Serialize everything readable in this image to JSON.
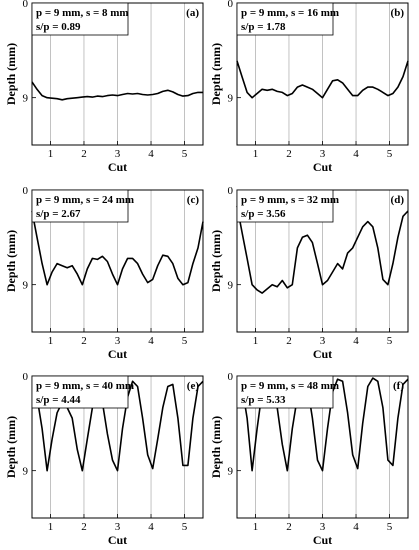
{
  "figure": {
    "chart_data": [
      {
        "type": "line",
        "panel_label": "(a)",
        "param_line1": "p = 9 mm, s = 8 mm",
        "param_line2": "s/p = 0.89",
        "xlabel": "Cut",
        "ylabel": "Depth (mm)",
        "xlim": [
          0.45,
          5.55
        ],
        "ylim": [
          0,
          13.5
        ],
        "y_inverted": true,
        "x_ticks": [
          1,
          2,
          3,
          4,
          5
        ],
        "y_ticks": [
          0,
          9
        ],
        "grid": "vertical",
        "series": [
          {
            "x": [
              0.45,
              0.6,
              0.75,
              0.9,
              1.05,
              1.2,
              1.35,
              1.5,
              1.65,
              1.8,
              1.95,
              2.1,
              2.25,
              2.4,
              2.55,
              2.7,
              2.85,
              3.0,
              3.15,
              3.3,
              3.45,
              3.6,
              3.75,
              3.9,
              4.05,
              4.2,
              4.35,
              4.5,
              4.65,
              4.8,
              4.95,
              5.1,
              5.25,
              5.4,
              5.55
            ],
            "values": [
              7.5,
              8.2,
              8.8,
              9.0,
              9.05,
              9.1,
              9.2,
              9.1,
              9.05,
              9.0,
              8.95,
              8.9,
              8.95,
              8.85,
              8.9,
              8.8,
              8.75,
              8.8,
              8.7,
              8.6,
              8.65,
              8.6,
              8.7,
              8.75,
              8.7,
              8.6,
              8.4,
              8.3,
              8.45,
              8.7,
              8.85,
              8.8,
              8.6,
              8.5,
              8.5
            ]
          }
        ]
      },
      {
        "type": "line",
        "panel_label": "(b)",
        "param_line1": "p = 9 mm, s = 16 mm",
        "param_line2": "s/p = 1.78",
        "xlabel": "Cut",
        "ylabel": "Depth (mm)",
        "xlim": [
          0.45,
          5.55
        ],
        "ylim": [
          0,
          13.5
        ],
        "y_inverted": true,
        "x_ticks": [
          1,
          2,
          3,
          4,
          5
        ],
        "y_ticks": [
          0,
          9
        ],
        "grid": "vertical",
        "series": [
          {
            "x": [
              0.45,
              0.6,
              0.75,
              0.9,
              1.05,
              1.2,
              1.35,
              1.5,
              1.65,
              1.8,
              1.95,
              2.1,
              2.25,
              2.4,
              2.55,
              2.7,
              2.85,
              3.0,
              3.15,
              3.3,
              3.45,
              3.6,
              3.75,
              3.9,
              4.05,
              4.2,
              4.35,
              4.5,
              4.65,
              4.8,
              4.95,
              5.1,
              5.25,
              5.4,
              5.55
            ],
            "values": [
              5.5,
              7.0,
              8.5,
              9.0,
              8.6,
              8.2,
              8.3,
              8.2,
              8.4,
              8.5,
              8.8,
              8.6,
              8.0,
              7.8,
              8.0,
              8.2,
              8.6,
              9.0,
              8.2,
              7.4,
              7.3,
              7.6,
              8.2,
              8.8,
              8.8,
              8.3,
              8.0,
              8.0,
              8.2,
              8.5,
              8.8,
              8.6,
              8.0,
              7.0,
              5.5
            ]
          }
        ]
      },
      {
        "type": "line",
        "panel_label": "(c)",
        "param_line1": "p = 9 mm, s = 24 mm",
        "param_line2": "s/p = 2.67",
        "xlabel": "Cut",
        "ylabel": "Depth (mm)",
        "xlim": [
          0.45,
          5.55
        ],
        "ylim": [
          0,
          13.5
        ],
        "y_inverted": true,
        "x_ticks": [
          1,
          2,
          3,
          4,
          5
        ],
        "y_ticks": [
          0,
          9
        ],
        "grid": "vertical",
        "series": [
          {
            "x": [
              0.45,
              0.6,
              0.75,
              0.9,
              1.05,
              1.2,
              1.35,
              1.5,
              1.65,
              1.8,
              1.95,
              2.1,
              2.25,
              2.4,
              2.55,
              2.7,
              2.85,
              3.0,
              3.15,
              3.3,
              3.45,
              3.6,
              3.75,
              3.9,
              4.05,
              4.2,
              4.35,
              4.5,
              4.65,
              4.8,
              4.95,
              5.1,
              5.25,
              5.4,
              5.55
            ],
            "values": [
              2.0,
              4.5,
              7.0,
              9.0,
              7.8,
              7.0,
              7.2,
              7.4,
              7.2,
              8.0,
              9.0,
              7.5,
              6.5,
              6.6,
              6.3,
              6.8,
              8.0,
              9.0,
              7.5,
              6.5,
              6.5,
              7.0,
              8.0,
              8.8,
              8.5,
              7.2,
              6.2,
              6.3,
              7.0,
              8.4,
              9.0,
              8.8,
              7.0,
              5.5,
              3.0
            ]
          }
        ]
      },
      {
        "type": "line",
        "panel_label": "(d)",
        "param_line1": "p = 9 mm, s = 32 mm",
        "param_line2": "s/p = 3.56",
        "xlabel": "Cut",
        "ylabel": "Depth (mm)",
        "xlim": [
          0.45,
          5.55
        ],
        "ylim": [
          0,
          13.5
        ],
        "y_inverted": true,
        "x_ticks": [
          1,
          2,
          3,
          4,
          5
        ],
        "y_ticks": [
          0,
          9
        ],
        "grid": "vertical",
        "series": [
          {
            "x": [
              0.45,
              0.6,
              0.75,
              0.9,
              1.05,
              1.2,
              1.35,
              1.5,
              1.65,
              1.8,
              1.95,
              2.1,
              2.25,
              2.4,
              2.55,
              2.7,
              2.85,
              3.0,
              3.15,
              3.3,
              3.45,
              3.6,
              3.75,
              3.9,
              4.05,
              4.2,
              4.35,
              4.5,
              4.65,
              4.8,
              4.95,
              5.1,
              5.25,
              5.4,
              5.55
            ],
            "values": [
              1.5,
              4.0,
              6.5,
              9.0,
              9.5,
              9.8,
              9.4,
              9.0,
              9.2,
              8.6,
              9.3,
              9.0,
              5.5,
              4.5,
              4.3,
              5.0,
              7.0,
              9.0,
              8.6,
              7.8,
              7.0,
              7.5,
              6.0,
              5.5,
              4.5,
              3.5,
              3.0,
              3.5,
              5.5,
              8.5,
              9.0,
              7.0,
              4.5,
              2.5,
              2.0
            ]
          }
        ]
      },
      {
        "type": "line",
        "panel_label": "(e)",
        "param_line1": "p = 9 mm, s = 40 mm",
        "param_line2": "s/p = 4.44",
        "xlabel": "Cut",
        "ylabel": "Depth (mm)",
        "xlim": [
          0.45,
          5.55
        ],
        "ylim": [
          0,
          13.5
        ],
        "y_inverted": true,
        "x_ticks": [
          1,
          2,
          3,
          4,
          5
        ],
        "y_ticks": [
          0,
          9
        ],
        "grid": "vertical",
        "series": [
          {
            "x": [
              0.45,
              0.6,
              0.75,
              0.9,
              1.05,
              1.2,
              1.35,
              1.5,
              1.65,
              1.8,
              1.95,
              2.1,
              2.25,
              2.4,
              2.55,
              2.7,
              2.85,
              3.0,
              3.15,
              3.3,
              3.45,
              3.6,
              3.75,
              3.9,
              4.05,
              4.2,
              4.35,
              4.5,
              4.65,
              4.8,
              4.95,
              5.1,
              5.25,
              5.4,
              5.55
            ],
            "values": [
              1.5,
              2.0,
              5.0,
              9.0,
              6.0,
              3.5,
              2.5,
              3.0,
              4.0,
              7.0,
              9.0,
              6.0,
              3.0,
              1.8,
              2.5,
              5.5,
              8.0,
              9.0,
              5.0,
              2.0,
              0.5,
              1.0,
              4.0,
              7.5,
              8.8,
              6.0,
              3.0,
              1.0,
              0.8,
              4.0,
              8.5,
              8.5,
              4.0,
              1.0,
              0.5
            ]
          }
        ]
      },
      {
        "type": "line",
        "panel_label": "(f)",
        "param_line1": "p = 9 mm, s = 48 mm",
        "param_line2": "s/p = 5.33",
        "xlabel": "Cut",
        "ylabel": "Depth (mm)",
        "xlim": [
          0.45,
          5.55
        ],
        "ylim": [
          0,
          13.5
        ],
        "y_inverted": true,
        "x_ticks": [
          1,
          2,
          3,
          4,
          5
        ],
        "y_ticks": [
          0,
          9
        ],
        "grid": "vertical",
        "series": [
          {
            "x": [
              0.45,
              0.6,
              0.75,
              0.9,
              1.05,
              1.2,
              1.35,
              1.5,
              1.65,
              1.8,
              1.95,
              2.1,
              2.25,
              2.4,
              2.55,
              2.7,
              2.85,
              3.0,
              3.15,
              3.3,
              3.45,
              3.6,
              3.75,
              3.9,
              4.05,
              4.2,
              4.35,
              4.5,
              4.65,
              4.8,
              4.95,
              5.1,
              5.25,
              5.4,
              5.55
            ],
            "values": [
              0.5,
              1.0,
              4.0,
              9.0,
              5.0,
              1.5,
              0.5,
              0.8,
              3.0,
              6.5,
              9.0,
              5.0,
              2.0,
              0.5,
              1.0,
              4.0,
              8.0,
              9.0,
              5.0,
              1.5,
              0.3,
              0.5,
              3.5,
              7.5,
              8.8,
              4.5,
              1.0,
              0.2,
              0.5,
              3.0,
              8.0,
              8.5,
              4.0,
              0.8,
              0.3
            ]
          }
        ]
      }
    ]
  }
}
